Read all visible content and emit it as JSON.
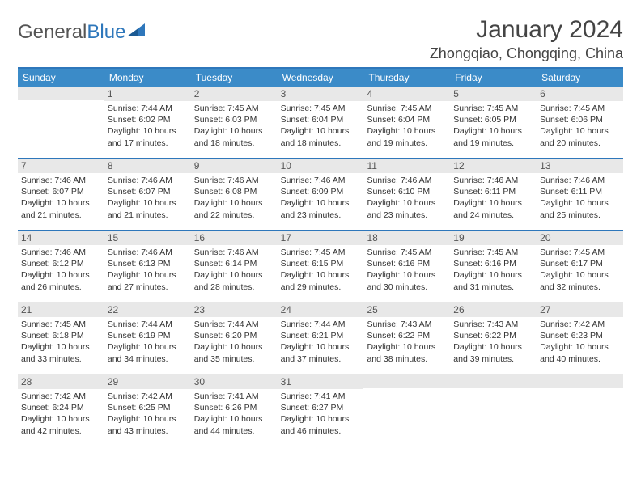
{
  "logo": {
    "general": "General",
    "blue": "Blue"
  },
  "title": "January 2024",
  "location": "Zhongqiao, Chongqing, China",
  "colors": {
    "header_bg": "#3b8bc8",
    "header_border": "#2e77bb",
    "daynum_bg": "#e8e8e8",
    "text": "#333333"
  },
  "day_headers": [
    "Sunday",
    "Monday",
    "Tuesday",
    "Wednesday",
    "Thursday",
    "Friday",
    "Saturday"
  ],
  "weeks": [
    [
      {
        "n": "",
        "sr": "",
        "ss": "",
        "dl": ""
      },
      {
        "n": "1",
        "sr": "Sunrise: 7:44 AM",
        "ss": "Sunset: 6:02 PM",
        "dl": "Daylight: 10 hours and 17 minutes."
      },
      {
        "n": "2",
        "sr": "Sunrise: 7:45 AM",
        "ss": "Sunset: 6:03 PM",
        "dl": "Daylight: 10 hours and 18 minutes."
      },
      {
        "n": "3",
        "sr": "Sunrise: 7:45 AM",
        "ss": "Sunset: 6:04 PM",
        "dl": "Daylight: 10 hours and 18 minutes."
      },
      {
        "n": "4",
        "sr": "Sunrise: 7:45 AM",
        "ss": "Sunset: 6:04 PM",
        "dl": "Daylight: 10 hours and 19 minutes."
      },
      {
        "n": "5",
        "sr": "Sunrise: 7:45 AM",
        "ss": "Sunset: 6:05 PM",
        "dl": "Daylight: 10 hours and 19 minutes."
      },
      {
        "n": "6",
        "sr": "Sunrise: 7:45 AM",
        "ss": "Sunset: 6:06 PM",
        "dl": "Daylight: 10 hours and 20 minutes."
      }
    ],
    [
      {
        "n": "7",
        "sr": "Sunrise: 7:46 AM",
        "ss": "Sunset: 6:07 PM",
        "dl": "Daylight: 10 hours and 21 minutes."
      },
      {
        "n": "8",
        "sr": "Sunrise: 7:46 AM",
        "ss": "Sunset: 6:07 PM",
        "dl": "Daylight: 10 hours and 21 minutes."
      },
      {
        "n": "9",
        "sr": "Sunrise: 7:46 AM",
        "ss": "Sunset: 6:08 PM",
        "dl": "Daylight: 10 hours and 22 minutes."
      },
      {
        "n": "10",
        "sr": "Sunrise: 7:46 AM",
        "ss": "Sunset: 6:09 PM",
        "dl": "Daylight: 10 hours and 23 minutes."
      },
      {
        "n": "11",
        "sr": "Sunrise: 7:46 AM",
        "ss": "Sunset: 6:10 PM",
        "dl": "Daylight: 10 hours and 23 minutes."
      },
      {
        "n": "12",
        "sr": "Sunrise: 7:46 AM",
        "ss": "Sunset: 6:11 PM",
        "dl": "Daylight: 10 hours and 24 minutes."
      },
      {
        "n": "13",
        "sr": "Sunrise: 7:46 AM",
        "ss": "Sunset: 6:11 PM",
        "dl": "Daylight: 10 hours and 25 minutes."
      }
    ],
    [
      {
        "n": "14",
        "sr": "Sunrise: 7:46 AM",
        "ss": "Sunset: 6:12 PM",
        "dl": "Daylight: 10 hours and 26 minutes."
      },
      {
        "n": "15",
        "sr": "Sunrise: 7:46 AM",
        "ss": "Sunset: 6:13 PM",
        "dl": "Daylight: 10 hours and 27 minutes."
      },
      {
        "n": "16",
        "sr": "Sunrise: 7:46 AM",
        "ss": "Sunset: 6:14 PM",
        "dl": "Daylight: 10 hours and 28 minutes."
      },
      {
        "n": "17",
        "sr": "Sunrise: 7:45 AM",
        "ss": "Sunset: 6:15 PM",
        "dl": "Daylight: 10 hours and 29 minutes."
      },
      {
        "n": "18",
        "sr": "Sunrise: 7:45 AM",
        "ss": "Sunset: 6:16 PM",
        "dl": "Daylight: 10 hours and 30 minutes."
      },
      {
        "n": "19",
        "sr": "Sunrise: 7:45 AM",
        "ss": "Sunset: 6:16 PM",
        "dl": "Daylight: 10 hours and 31 minutes."
      },
      {
        "n": "20",
        "sr": "Sunrise: 7:45 AM",
        "ss": "Sunset: 6:17 PM",
        "dl": "Daylight: 10 hours and 32 minutes."
      }
    ],
    [
      {
        "n": "21",
        "sr": "Sunrise: 7:45 AM",
        "ss": "Sunset: 6:18 PM",
        "dl": "Daylight: 10 hours and 33 minutes."
      },
      {
        "n": "22",
        "sr": "Sunrise: 7:44 AM",
        "ss": "Sunset: 6:19 PM",
        "dl": "Daylight: 10 hours and 34 minutes."
      },
      {
        "n": "23",
        "sr": "Sunrise: 7:44 AM",
        "ss": "Sunset: 6:20 PM",
        "dl": "Daylight: 10 hours and 35 minutes."
      },
      {
        "n": "24",
        "sr": "Sunrise: 7:44 AM",
        "ss": "Sunset: 6:21 PM",
        "dl": "Daylight: 10 hours and 37 minutes."
      },
      {
        "n": "25",
        "sr": "Sunrise: 7:43 AM",
        "ss": "Sunset: 6:22 PM",
        "dl": "Daylight: 10 hours and 38 minutes."
      },
      {
        "n": "26",
        "sr": "Sunrise: 7:43 AM",
        "ss": "Sunset: 6:22 PM",
        "dl": "Daylight: 10 hours and 39 minutes."
      },
      {
        "n": "27",
        "sr": "Sunrise: 7:42 AM",
        "ss": "Sunset: 6:23 PM",
        "dl": "Daylight: 10 hours and 40 minutes."
      }
    ],
    [
      {
        "n": "28",
        "sr": "Sunrise: 7:42 AM",
        "ss": "Sunset: 6:24 PM",
        "dl": "Daylight: 10 hours and 42 minutes."
      },
      {
        "n": "29",
        "sr": "Sunrise: 7:42 AM",
        "ss": "Sunset: 6:25 PM",
        "dl": "Daylight: 10 hours and 43 minutes."
      },
      {
        "n": "30",
        "sr": "Sunrise: 7:41 AM",
        "ss": "Sunset: 6:26 PM",
        "dl": "Daylight: 10 hours and 44 minutes."
      },
      {
        "n": "31",
        "sr": "Sunrise: 7:41 AM",
        "ss": "Sunset: 6:27 PM",
        "dl": "Daylight: 10 hours and 46 minutes."
      },
      {
        "n": "",
        "sr": "",
        "ss": "",
        "dl": ""
      },
      {
        "n": "",
        "sr": "",
        "ss": "",
        "dl": ""
      },
      {
        "n": "",
        "sr": "",
        "ss": "",
        "dl": ""
      }
    ]
  ]
}
